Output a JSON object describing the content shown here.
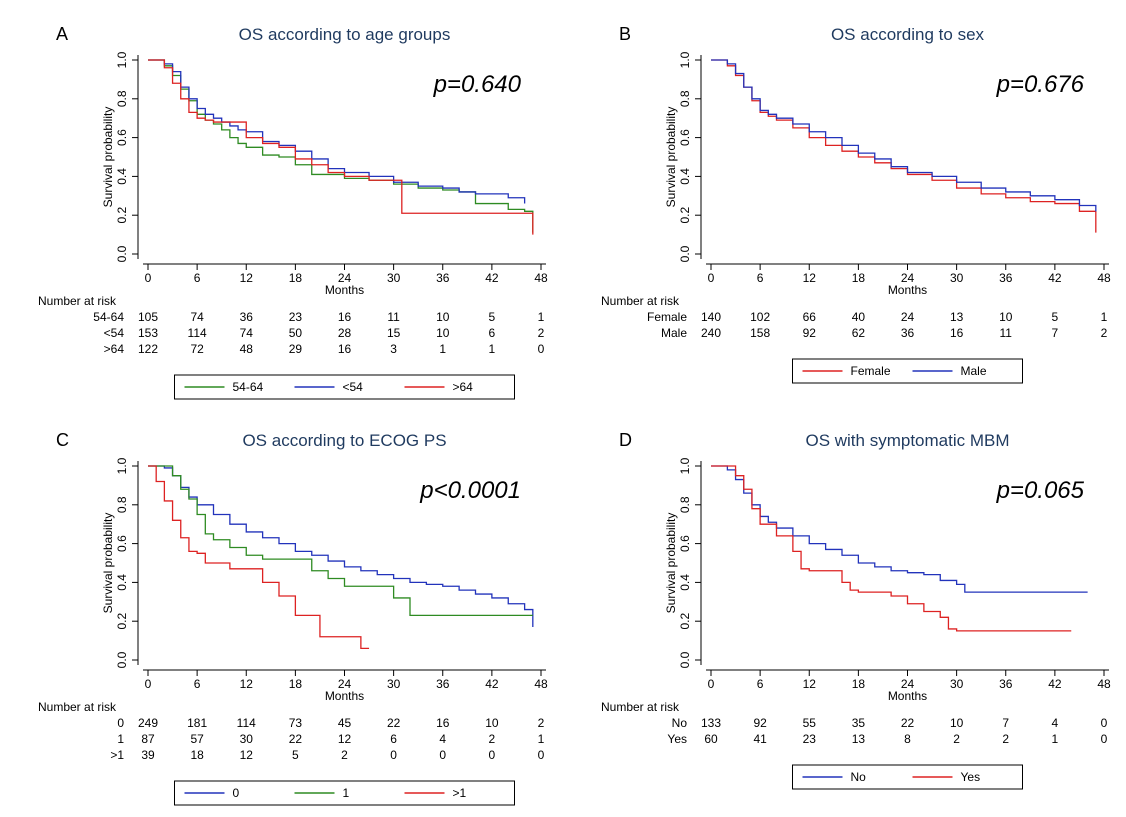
{
  "chart_data": [
    {
      "type": "line",
      "panel_letter": "A",
      "title": "OS according to age groups",
      "p_value": "p=0.640",
      "xlabel": "Months",
      "ylabel": "Survival probability",
      "xlim": [
        0,
        48
      ],
      "ylim": [
        0,
        1
      ],
      "x_ticks": [
        "0",
        "6",
        "12",
        "18",
        "24",
        "30",
        "36",
        "42",
        "48"
      ],
      "y_ticks": [
        "0.0",
        "0.2",
        "0.4",
        "0.6",
        "0.8",
        "1.0"
      ],
      "grid": false,
      "legend_position": "bottom",
      "risk_header": "Number at risk",
      "risk_table": [
        {
          "label": "54-64",
          "values": [
            "105",
            "74",
            "36",
            "23",
            "16",
            "11",
            "10",
            "5",
            "1"
          ]
        },
        {
          "label": "<54",
          "values": [
            "153",
            "114",
            "74",
            "50",
            "28",
            "15",
            "10",
            "6",
            "2"
          ]
        },
        {
          "label": ">64",
          "values": [
            "122",
            "72",
            "48",
            "29",
            "16",
            "3",
            "1",
            "1",
            "0"
          ]
        }
      ],
      "series": [
        {
          "name": "54-64",
          "color": "#2e8b22",
          "x": [
            0,
            1,
            2,
            3,
            4,
            5,
            6,
            7,
            8,
            9,
            10,
            11,
            12,
            14,
            16,
            18,
            20,
            22,
            24,
            27,
            30,
            33,
            36,
            38,
            40,
            42,
            44,
            46,
            47
          ],
          "y": [
            1.0,
            1.0,
            0.97,
            0.92,
            0.85,
            0.79,
            0.72,
            0.69,
            0.67,
            0.64,
            0.6,
            0.57,
            0.55,
            0.51,
            0.5,
            0.46,
            0.41,
            0.41,
            0.39,
            0.38,
            0.36,
            0.34,
            0.33,
            0.32,
            0.26,
            0.26,
            0.23,
            0.22,
            0.11
          ]
        },
        {
          "name": "<54",
          "color": "#2233bb",
          "x": [
            0,
            1,
            2,
            3,
            4,
            5,
            6,
            7,
            8,
            9,
            10,
            11,
            12,
            14,
            16,
            18,
            20,
            22,
            24,
            27,
            30,
            33,
            36,
            38,
            40,
            42,
            44,
            46
          ],
          "y": [
            1.0,
            1.0,
            0.98,
            0.94,
            0.86,
            0.8,
            0.75,
            0.72,
            0.7,
            0.68,
            0.66,
            0.64,
            0.63,
            0.58,
            0.56,
            0.53,
            0.49,
            0.44,
            0.42,
            0.4,
            0.37,
            0.35,
            0.34,
            0.32,
            0.31,
            0.31,
            0.29,
            0.26
          ]
        },
        {
          "name": ">64",
          "color": "#dd2222",
          "x": [
            0,
            1,
            2,
            3,
            4,
            5,
            6,
            7,
            8,
            10,
            12,
            14,
            16,
            18,
            20,
            22,
            24,
            27,
            30,
            31,
            36,
            42,
            46,
            47
          ],
          "y": [
            1.0,
            1.0,
            0.96,
            0.88,
            0.8,
            0.73,
            0.7,
            0.69,
            0.68,
            0.68,
            0.6,
            0.57,
            0.55,
            0.49,
            0.46,
            0.42,
            0.4,
            0.38,
            0.38,
            0.21,
            0.21,
            0.21,
            0.21,
            0.1
          ]
        }
      ]
    },
    {
      "type": "line",
      "panel_letter": "B",
      "title": "OS according to sex",
      "p_value": "p=0.676",
      "xlabel": "Months",
      "ylabel": "Survival probability",
      "xlim": [
        0,
        48
      ],
      "ylim": [
        0,
        1
      ],
      "x_ticks": [
        "0",
        "6",
        "12",
        "18",
        "24",
        "30",
        "36",
        "42",
        "48"
      ],
      "y_ticks": [
        "0.0",
        "0.2",
        "0.4",
        "0.6",
        "0.8",
        "1.0"
      ],
      "grid": false,
      "legend_position": "bottom",
      "risk_header": "Number at risk",
      "risk_table": [
        {
          "label": "Female",
          "values": [
            "140",
            "102",
            "66",
            "40",
            "24",
            "13",
            "10",
            "5",
            "1"
          ]
        },
        {
          "label": "Male",
          "values": [
            "240",
            "158",
            "92",
            "62",
            "36",
            "16",
            "11",
            "7",
            "2"
          ]
        }
      ],
      "series": [
        {
          "name": "Female",
          "color": "#dd2222",
          "x": [
            0,
            1,
            2,
            3,
            4,
            5,
            6,
            7,
            8,
            10,
            12,
            14,
            16,
            18,
            20,
            22,
            24,
            27,
            30,
            33,
            36,
            39,
            42,
            45,
            47
          ],
          "y": [
            1.0,
            1.0,
            0.97,
            0.92,
            0.86,
            0.79,
            0.73,
            0.71,
            0.69,
            0.65,
            0.6,
            0.56,
            0.53,
            0.5,
            0.47,
            0.44,
            0.41,
            0.38,
            0.34,
            0.31,
            0.29,
            0.27,
            0.26,
            0.22,
            0.11
          ]
        },
        {
          "name": "Male",
          "color": "#2233bb",
          "x": [
            0,
            1,
            2,
            3,
            4,
            5,
            6,
            7,
            8,
            10,
            12,
            14,
            16,
            18,
            20,
            22,
            24,
            27,
            30,
            33,
            36,
            39,
            42,
            45,
            47
          ],
          "y": [
            1.0,
            1.0,
            0.98,
            0.93,
            0.86,
            0.8,
            0.74,
            0.72,
            0.7,
            0.67,
            0.63,
            0.6,
            0.56,
            0.52,
            0.49,
            0.45,
            0.42,
            0.4,
            0.37,
            0.34,
            0.32,
            0.3,
            0.28,
            0.25,
            0.22
          ]
        }
      ]
    },
    {
      "type": "line",
      "panel_letter": "C",
      "title": "OS according to ECOG PS",
      "p_value": "p<0.0001",
      "xlabel": "Months",
      "ylabel": "Survival probability",
      "xlim": [
        0,
        48
      ],
      "ylim": [
        0,
        1
      ],
      "x_ticks": [
        "0",
        "6",
        "12",
        "18",
        "24",
        "30",
        "36",
        "42",
        "48"
      ],
      "y_ticks": [
        "0.0",
        "0.2",
        "0.4",
        "0.6",
        "0.8",
        "1.0"
      ],
      "grid": false,
      "legend_position": "bottom",
      "risk_header": "Number at risk",
      "risk_table": [
        {
          "label": "0",
          "values": [
            "249",
            "181",
            "114",
            "73",
            "45",
            "22",
            "16",
            "10",
            "2"
          ]
        },
        {
          "label": "1",
          "values": [
            "87",
            "57",
            "30",
            "22",
            "12",
            "6",
            "4",
            "2",
            "1"
          ]
        },
        {
          "label": ">1",
          "values": [
            "39",
            "18",
            "12",
            "5",
            "2",
            "0",
            "0",
            "0",
            "0"
          ]
        }
      ],
      "series": [
        {
          "name": "0",
          "color": "#2233bb",
          "x": [
            0,
            1,
            2,
            3,
            4,
            5,
            6,
            8,
            10,
            12,
            14,
            16,
            18,
            20,
            22,
            24,
            26,
            28,
            30,
            32,
            34,
            36,
            38,
            40,
            42,
            44,
            46,
            47
          ],
          "y": [
            1.0,
            1.0,
            0.99,
            0.95,
            0.89,
            0.84,
            0.8,
            0.75,
            0.7,
            0.66,
            0.63,
            0.6,
            0.56,
            0.54,
            0.51,
            0.48,
            0.46,
            0.44,
            0.42,
            0.4,
            0.39,
            0.38,
            0.36,
            0.34,
            0.32,
            0.29,
            0.26,
            0.17
          ]
        },
        {
          "name": "1",
          "color": "#2e8b22",
          "x": [
            0,
            2,
            3,
            4,
            5,
            6,
            7,
            8,
            10,
            12,
            14,
            18,
            20,
            22,
            24,
            26,
            30,
            32,
            36,
            42,
            44,
            47
          ],
          "y": [
            1.0,
            1.0,
            0.95,
            0.88,
            0.83,
            0.75,
            0.65,
            0.62,
            0.58,
            0.54,
            0.52,
            0.52,
            0.46,
            0.42,
            0.38,
            0.38,
            0.32,
            0.23,
            0.23,
            0.23,
            0.23,
            0.23
          ]
        },
        {
          "name": ">1",
          "color": "#dd2222",
          "x": [
            0,
            1,
            2,
            3,
            4,
            5,
            6,
            7,
            8,
            10,
            12,
            14,
            16,
            18,
            20,
            21,
            24,
            26,
            27
          ],
          "y": [
            1.0,
            0.92,
            0.82,
            0.72,
            0.63,
            0.56,
            0.55,
            0.5,
            0.5,
            0.47,
            0.47,
            0.4,
            0.33,
            0.23,
            0.23,
            0.12,
            0.12,
            0.06,
            0.06
          ]
        }
      ]
    },
    {
      "type": "line",
      "panel_letter": "D",
      "title": "OS with symptomatic MBM",
      "p_value": "p=0.065",
      "xlabel": "Months",
      "ylabel": "Survival probability",
      "xlim": [
        0,
        48
      ],
      "ylim": [
        0,
        1
      ],
      "x_ticks": [
        "0",
        "6",
        "12",
        "18",
        "24",
        "30",
        "36",
        "42",
        "48"
      ],
      "y_ticks": [
        "0.0",
        "0.2",
        "0.4",
        "0.6",
        "0.8",
        "1.0"
      ],
      "grid": false,
      "legend_position": "bottom",
      "risk_header": "Number at risk",
      "risk_table": [
        {
          "label": "No",
          "values": [
            "133",
            "92",
            "55",
            "35",
            "22",
            "10",
            "7",
            "4",
            "0"
          ]
        },
        {
          "label": "Yes",
          "values": [
            "60",
            "41",
            "23",
            "13",
            "8",
            "2",
            "2",
            "1",
            "0"
          ]
        }
      ],
      "series": [
        {
          "name": "No",
          "color": "#2233bb",
          "x": [
            0,
            1,
            2,
            3,
            4,
            5,
            6,
            7,
            8,
            10,
            12,
            14,
            16,
            18,
            20,
            22,
            24,
            26,
            28,
            30,
            31,
            36,
            42,
            46
          ],
          "y": [
            1.0,
            1.0,
            0.98,
            0.93,
            0.86,
            0.8,
            0.74,
            0.71,
            0.68,
            0.64,
            0.6,
            0.57,
            0.54,
            0.5,
            0.48,
            0.46,
            0.45,
            0.44,
            0.41,
            0.39,
            0.35,
            0.35,
            0.35,
            0.35
          ]
        },
        {
          "name": "Yes",
          "color": "#dd2222",
          "x": [
            0,
            2,
            3,
            4,
            5,
            6,
            8,
            10,
            11,
            12,
            15,
            16,
            17,
            18,
            20,
            22,
            24,
            26,
            28,
            29,
            30,
            36,
            44
          ],
          "y": [
            1.0,
            1.0,
            0.95,
            0.88,
            0.78,
            0.7,
            0.64,
            0.56,
            0.47,
            0.46,
            0.46,
            0.4,
            0.36,
            0.35,
            0.35,
            0.33,
            0.29,
            0.25,
            0.22,
            0.16,
            0.15,
            0.15,
            0.15
          ]
        }
      ]
    }
  ]
}
